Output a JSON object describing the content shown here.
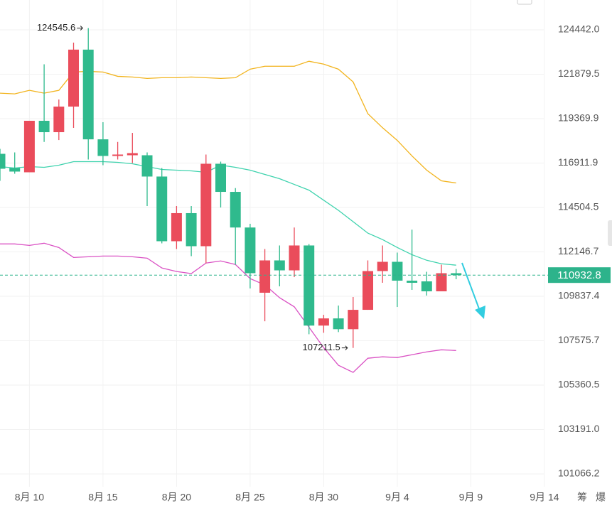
{
  "chart_data": {
    "type": "candlestick",
    "categories": [
      null,
      null,
      "8月 10",
      null,
      null,
      null,
      null,
      "8月 15",
      null,
      null,
      null,
      null,
      "8月 20",
      null,
      null,
      null,
      null,
      "8月 25",
      null,
      null,
      null,
      null,
      "8月 30",
      null,
      null,
      null,
      null,
      "9月 4",
      null,
      null,
      null,
      null,
      "9月 9",
      null,
      null,
      null,
      null,
      "9月 14"
    ],
    "open": [
      117419,
      116640,
      116408,
      119251,
      118616,
      120047,
      123294,
      118219,
      117302,
      117341,
      117341,
      116176,
      112708,
      114201,
      112446,
      116873,
      115345,
      113435,
      110021,
      111700,
      111180,
      112484,
      108340,
      108705,
      108157,
      109143,
      111143,
      111626,
      110645,
      110608,
      110094,
      111032,
      null,
      null,
      null,
      null,
      null,
      null
    ],
    "high": [
      117692,
      117497,
      119251,
      122450,
      120447,
      123700,
      124545.6,
      119172,
      118075,
      118577,
      117497,
      116640,
      114581,
      114581,
      117380,
      116990,
      115550,
      113633,
      112297,
      112484,
      113435,
      112559,
      108888,
      109362,
      109801,
      111700,
      112484,
      112110,
      113322,
      111106,
      111477,
      111254,
      null,
      null,
      null,
      null,
      null,
      null
    ],
    "low": [
      115944,
      116330,
      116408,
      118075,
      118180,
      118855,
      117107,
      116795,
      117107,
      116912,
      114581,
      112596,
      112297,
      111923,
      111551,
      114505,
      111477,
      110241,
      108559,
      110351,
      110828,
      107902,
      107975,
      108011,
      107211.5,
      109143,
      110535,
      109289,
      110168,
      109874,
      110094,
      110718,
      null,
      null,
      null,
      null,
      null,
      null
    ],
    "close": [
      116601,
      116447,
      119251,
      118616,
      120047,
      123294,
      118219,
      117302,
      117380,
      117458,
      116176,
      112708,
      114201,
      112446,
      116873,
      115345,
      113435,
      111032,
      111700,
      111180,
      112484,
      108340,
      108705,
      108157,
      109143,
      111143,
      111626,
      110645,
      110535,
      110094,
      111032,
      110932.8,
      null,
      null,
      null,
      null,
      null,
      null
    ],
    "up_color": "#ea4c5b",
    "down_color": "#2fba8d",
    "overlays": [
      {
        "color": "#f2b41e",
        "values": [
          120805,
          120765,
          120965,
          120805,
          120965,
          122005,
          122046,
          122005,
          121761,
          121721,
          121641,
          121681,
          121681,
          121721,
          121681,
          121641,
          121681,
          122170,
          122336,
          122336,
          122336,
          122625,
          122460,
          122170,
          121442,
          119651,
          118863,
          118161,
          117303,
          116524,
          115942,
          115826,
          null,
          null,
          null,
          null,
          null,
          null
        ]
      },
      {
        "color": "#3fd3ae",
        "values": [
          116718,
          116640,
          116718,
          116679,
          116796,
          116991,
          116991,
          116991,
          116951,
          116873,
          116718,
          116563,
          116524,
          116485,
          116408,
          116796,
          116679,
          116524,
          116291,
          116058,
          115748,
          115438,
          114894,
          114353,
          113745,
          113137,
          112795,
          112377,
          112000,
          111707,
          111524,
          111451,
          null,
          null,
          null,
          null,
          null,
          null
        ]
      },
      {
        "color": "#da52c4",
        "values": [
          112565,
          112565,
          112489,
          112603,
          112375,
          111854,
          111890,
          111927,
          111927,
          111890,
          111817,
          111304,
          111121,
          111011,
          111561,
          111671,
          111487,
          110754,
          110424,
          109765,
          109299,
          108258,
          107224,
          106344,
          105992,
          106696,
          106766,
          106731,
          106872,
          107013,
          107118,
          107083,
          null,
          null,
          null,
          null,
          null,
          null
        ]
      }
    ],
    "ylim": [
      101066.2,
      124442.0
    ],
    "log_y": true,
    "yticks": [
      {
        "value": 124442.0,
        "label": "124442.0"
      },
      121879.5,
      119369.9,
      116911.9,
      114504.5,
      112146.7,
      109837.4,
      107575.7,
      105360.5,
      {
        "value": 103191.0,
        "label": "103191.0"
      },
      101066.2
    ],
    "grid": true,
    "last_price": 110932.8,
    "last_price_color": "#2db38b",
    "annotations": [
      {
        "text": "124545.6",
        "value": 124545.6,
        "index": 6
      },
      {
        "text": "107211.5",
        "value": 107211.5,
        "index": 24
      }
    ],
    "toolbar": [
      "筹",
      "爆"
    ]
  }
}
